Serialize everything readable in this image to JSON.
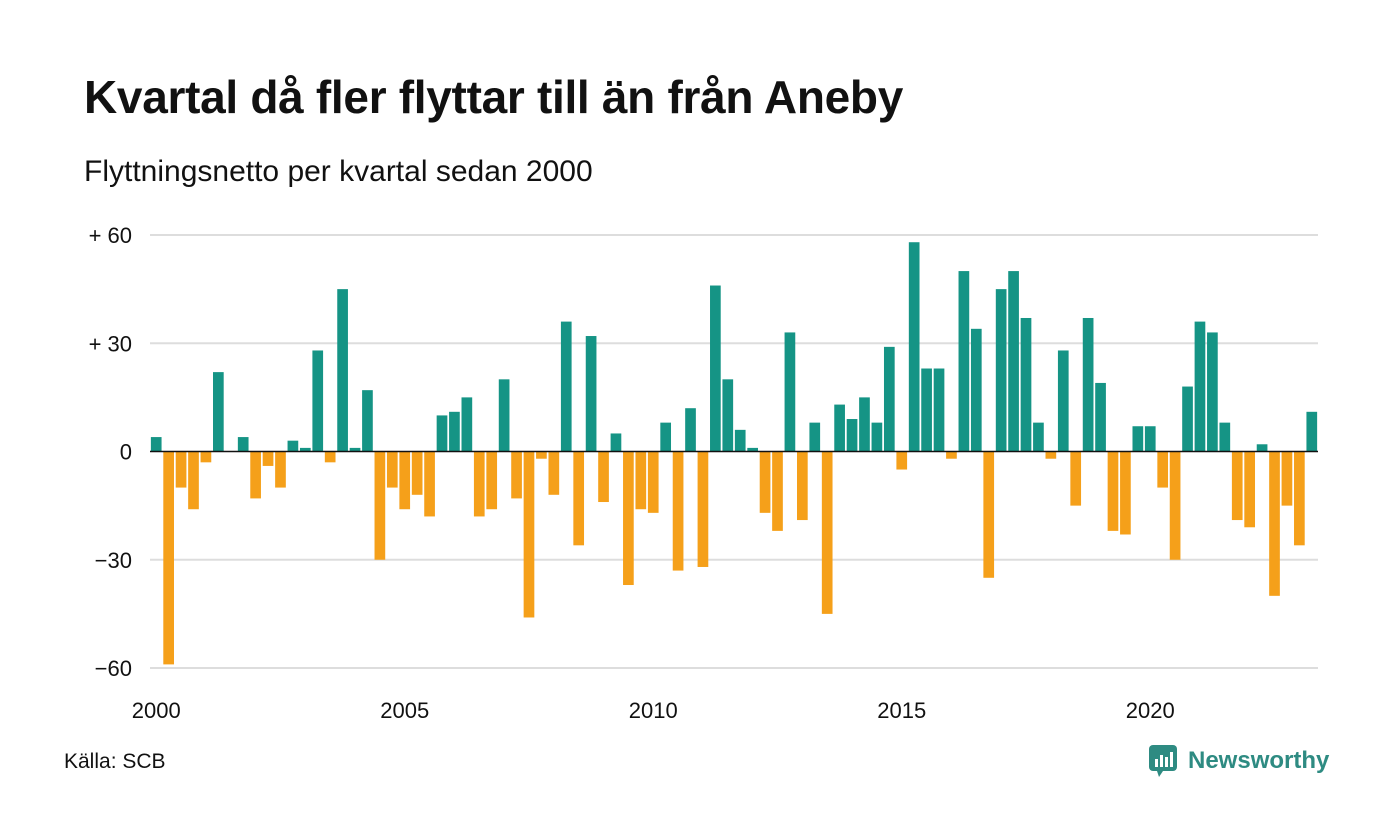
{
  "header": {
    "title": "Kvartal då fler flyttar till än från Aneby",
    "subtitle": "Flyttningsnetto per kvartal sedan 2000"
  },
  "footer": {
    "source": "Källa: SCB",
    "brand": "Newsworthy",
    "brand_icon": "newsworthy-logo-icon"
  },
  "colors": {
    "positive": "#159485",
    "negative": "#f5a01a",
    "grid": "#dddddd",
    "axis": "#111111",
    "brand": "#2e8b82"
  },
  "chart_data": {
    "type": "bar",
    "x_start": "2000 Q1",
    "x_ticks": [
      "2000",
      "2005",
      "2010",
      "2015",
      "2020"
    ],
    "y_ticks": [
      60,
      30,
      0,
      -30,
      -60
    ],
    "y_tick_labels": [
      "+ 60",
      "+ 30",
      "0",
      "−30",
      "−60"
    ],
    "ylim": [
      -60,
      60
    ],
    "grid": true,
    "values": [
      4,
      -59,
      -10,
      -16,
      -3,
      22,
      0,
      4,
      -13,
      -4,
      -10,
      3,
      1,
      28,
      -3,
      45,
      1,
      17,
      -30,
      -10,
      -16,
      -12,
      -18,
      10,
      11,
      15,
      -18,
      -16,
      20,
      -13,
      -46,
      -2,
      -12,
      36,
      -26,
      32,
      -14,
      5,
      -37,
      -16,
      -17,
      8,
      -33,
      12,
      -32,
      46,
      20,
      6,
      1,
      -17,
      -22,
      33,
      -19,
      8,
      -45,
      13,
      9,
      15,
      8,
      29,
      -5,
      58,
      23,
      23,
      -2,
      50,
      34,
      -35,
      45,
      50,
      37,
      8,
      -2,
      28,
      -15,
      37,
      19,
      -22,
      -23,
      7,
      7,
      -10,
      -30,
      18,
      36,
      33,
      8,
      -19,
      -21,
      2,
      -40,
      -15,
      -26,
      11
    ]
  }
}
